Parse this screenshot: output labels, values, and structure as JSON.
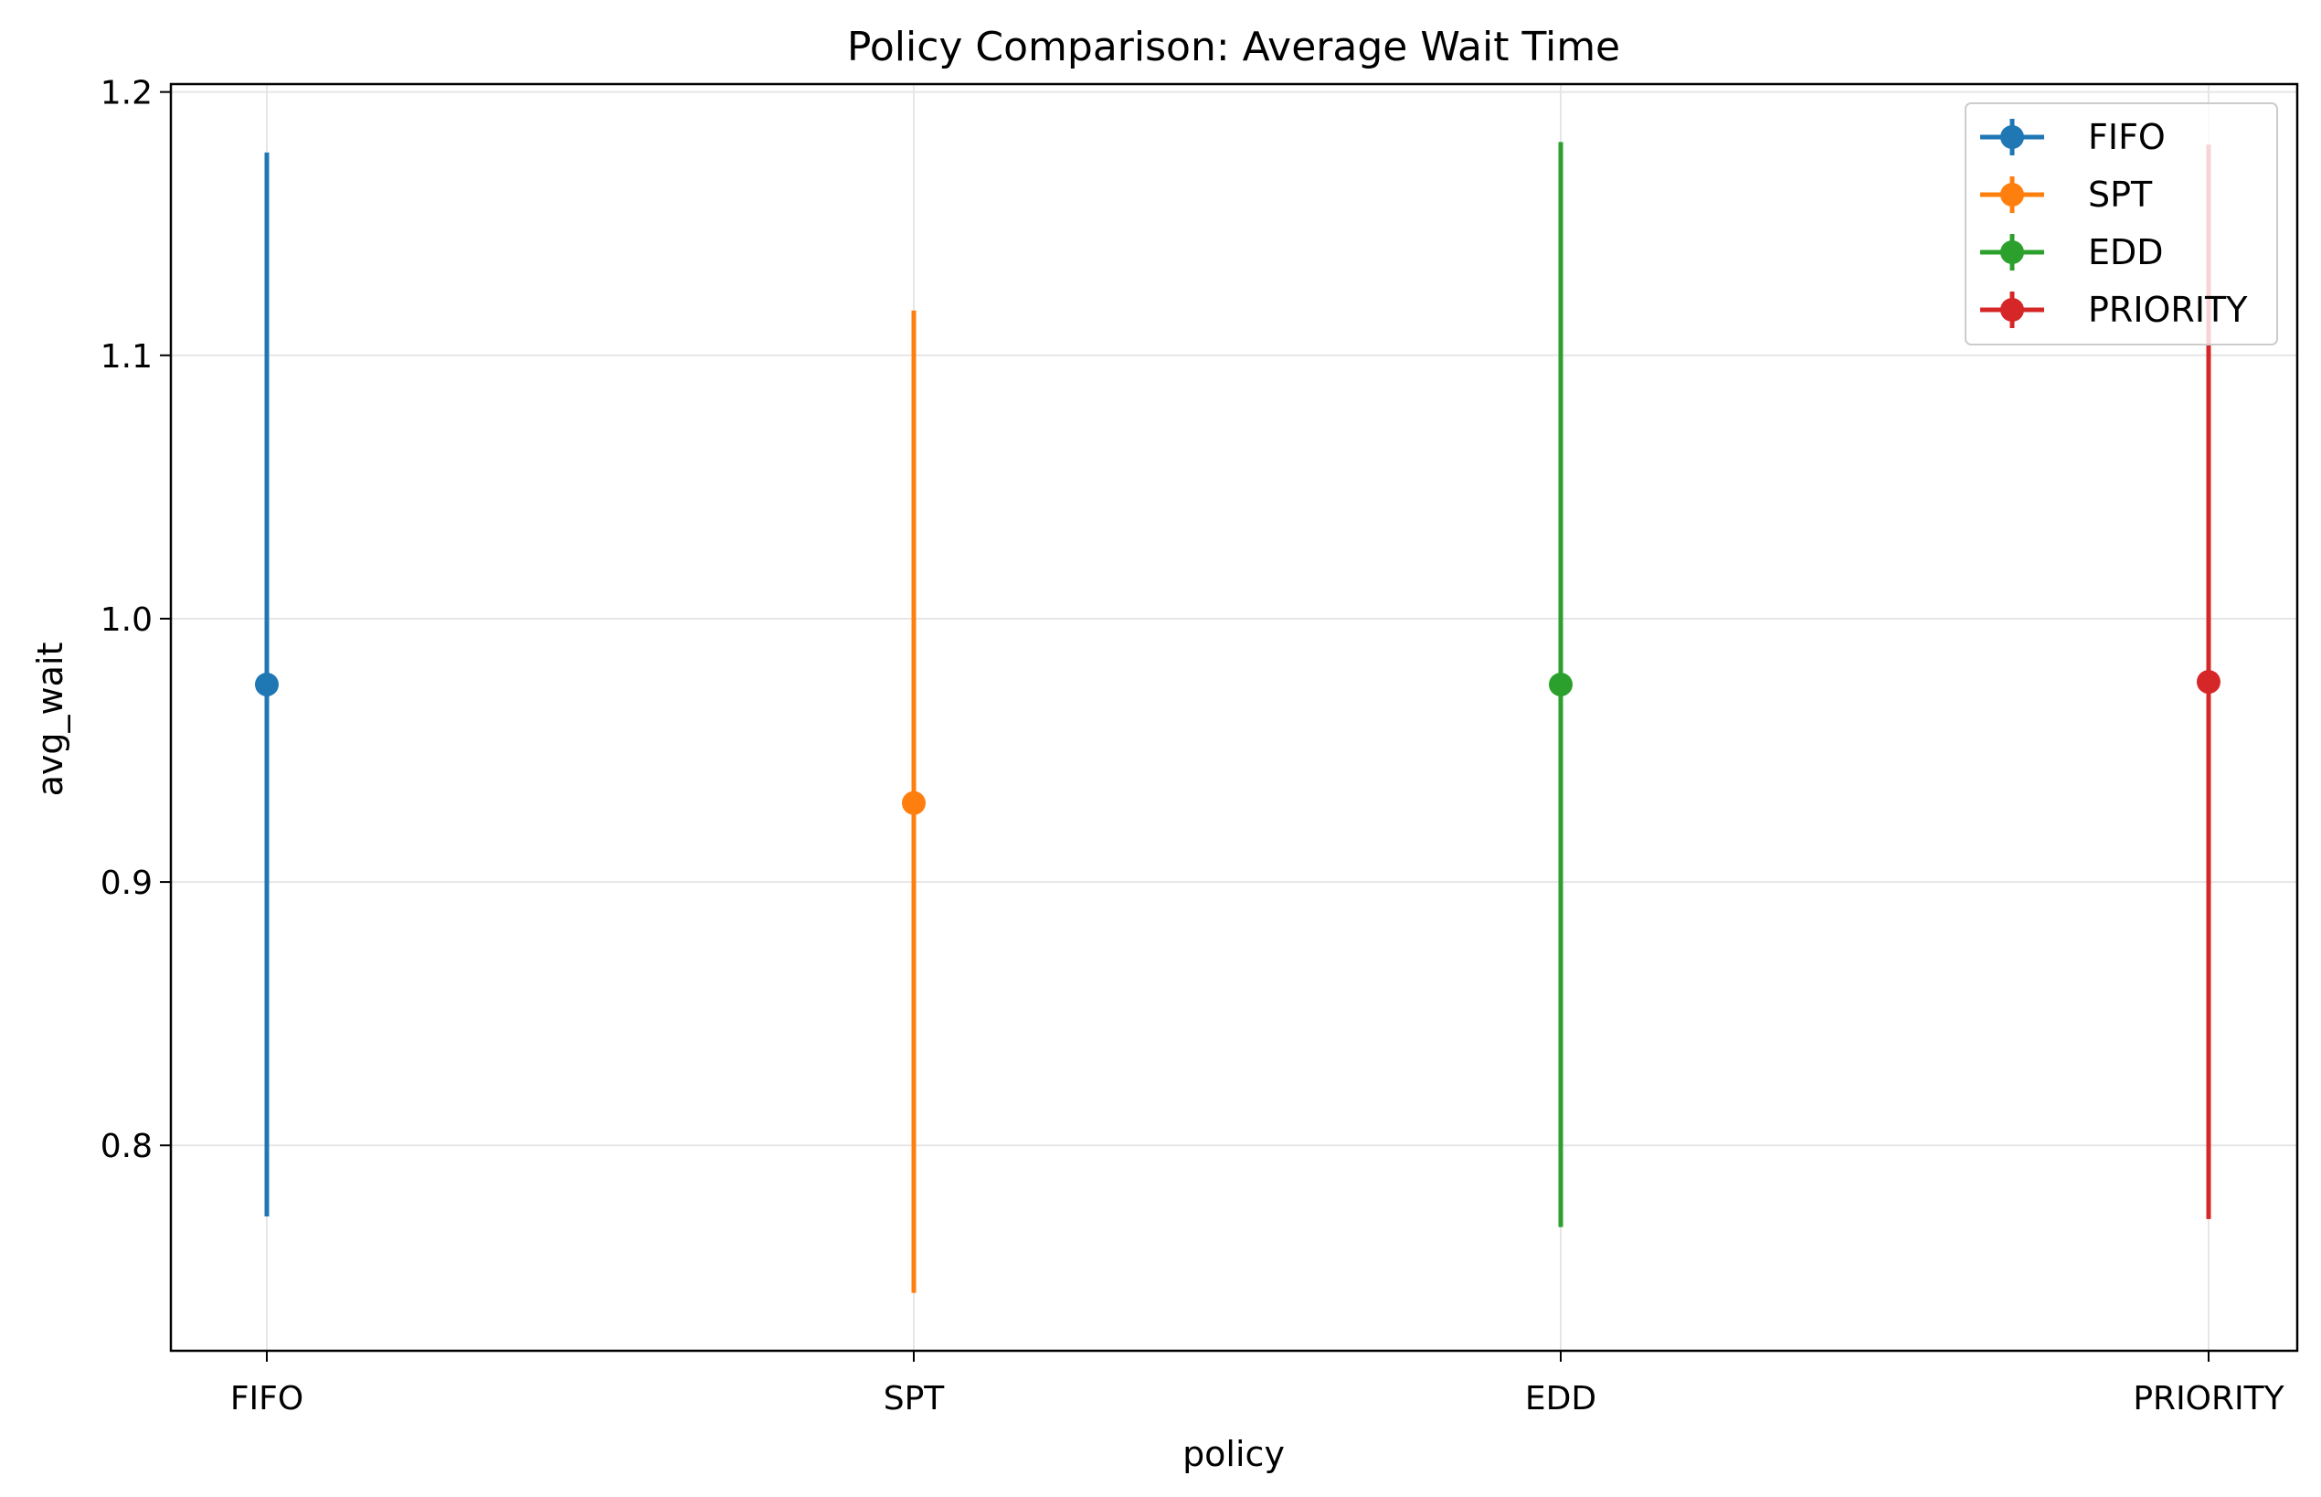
{
  "chart_data": {
    "type": "scatter",
    "title": "Policy Comparison: Average Wait Time",
    "xlabel": "policy",
    "ylabel": "avg_wait",
    "categories": [
      "FIFO",
      "SPT",
      "EDD",
      "PRIORITY"
    ],
    "ylim": [
      0.722,
      1.203
    ],
    "yticks": [
      "0.8",
      "0.9",
      "1.0",
      "1.1",
      "1.2"
    ],
    "grid": true,
    "legend_position": "top-right",
    "series": [
      {
        "name": "FIFO",
        "color": "#1f77b4",
        "category": "FIFO",
        "mean": 0.975,
        "lower": 0.773,
        "upper": 1.177
      },
      {
        "name": "SPT",
        "color": "#ff7f0e",
        "category": "SPT",
        "mean": 0.93,
        "lower": 0.744,
        "upper": 1.117
      },
      {
        "name": "EDD",
        "color": "#2ca02c",
        "category": "EDD",
        "mean": 0.975,
        "lower": 0.769,
        "upper": 1.181
      },
      {
        "name": "PRIORITY",
        "color": "#d62728",
        "category": "PRIORITY",
        "mean": 0.976,
        "lower": 0.772,
        "upper": 1.18
      }
    ]
  }
}
